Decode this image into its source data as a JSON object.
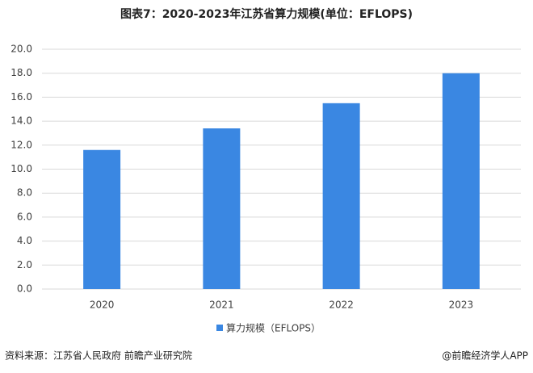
{
  "chart_data": {
    "type": "bar",
    "title": "图表7：2020-2023年江苏省算力规模(单位：EFLOPS)",
    "categories": [
      "2020",
      "2021",
      "2022",
      "2023"
    ],
    "series": [
      {
        "name": "算力规模（EFLOPS）",
        "color": "#3a87e2",
        "values": [
          11.6,
          13.4,
          15.5,
          18.0
        ]
      }
    ],
    "ylim": [
      0,
      20
    ],
    "yticks": [
      {
        "value": 0,
        "label": "0.0"
      },
      {
        "value": 2,
        "label": "2.0"
      },
      {
        "value": 4,
        "label": "4.0"
      },
      {
        "value": 6,
        "label": "6.0"
      },
      {
        "value": 8,
        "label": "8.0"
      },
      {
        "value": 10,
        "label": "10.0"
      },
      {
        "value": 12,
        "label": "12.0"
      },
      {
        "value": 14,
        "label": "14.0"
      },
      {
        "value": 16,
        "label": "16.0"
      },
      {
        "value": 18,
        "label": "18.0"
      },
      {
        "value": 20,
        "label": "20.0"
      }
    ],
    "grid": true,
    "legend": "bottom"
  },
  "source": "资料来源：江苏省人民政府 前瞻产业研究院",
  "credit": "@前瞻经济学人APP"
}
